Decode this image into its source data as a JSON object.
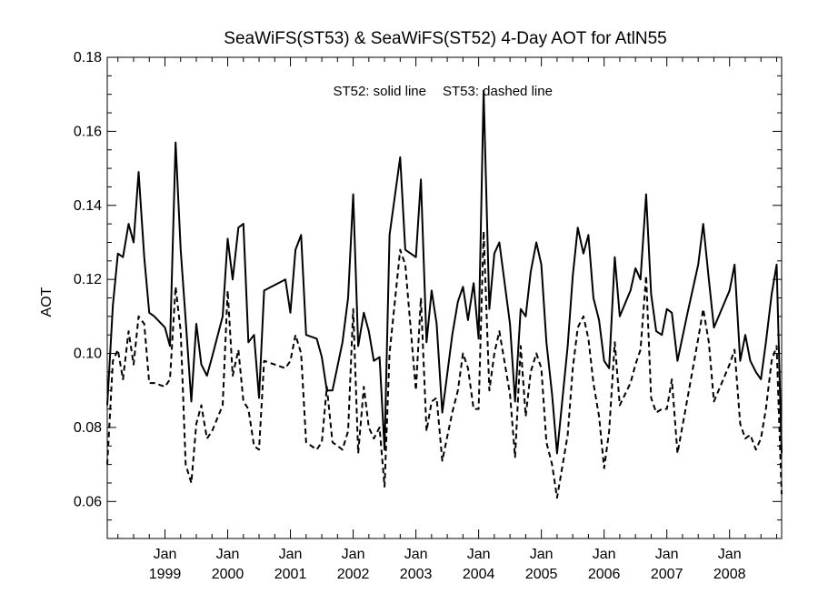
{
  "chart_data": {
    "type": "line",
    "title": "SeaWiFS(ST53) & SeaWiFS(ST52) 4-Day AOT for AtlN55",
    "annotation": {
      "series1": "ST52: solid line",
      "series2": "ST53: dashed line"
    },
    "xlabel": "",
    "ylabel": "AOT",
    "ylim": [
      0.05,
      0.18
    ],
    "yticks": [
      0.06,
      0.08,
      0.1,
      0.12,
      0.14,
      0.16,
      0.18
    ],
    "ytick_labels": [
      "0.06",
      "0.08",
      "0.10",
      "0.12",
      "0.14",
      "0.16",
      "0.18"
    ],
    "xlim": [
      1998.08,
      2008.83
    ],
    "xticks": [
      {
        "x": 1999.0,
        "month": "Jan",
        "year": "1999"
      },
      {
        "x": 2000.0,
        "month": "Jan",
        "year": "2000"
      },
      {
        "x": 2001.0,
        "month": "Jan",
        "year": "2001"
      },
      {
        "x": 2002.0,
        "month": "Jan",
        "year": "2002"
      },
      {
        "x": 2003.0,
        "month": "Jan",
        "year": "2003"
      },
      {
        "x": 2004.0,
        "month": "Jan",
        "year": "2004"
      },
      {
        "x": 2005.0,
        "month": "Jan",
        "year": "2005"
      },
      {
        "x": 2006.0,
        "month": "Jan",
        "year": "2006"
      },
      {
        "x": 2007.0,
        "month": "Jan",
        "year": "2007"
      },
      {
        "x": 2008.0,
        "month": "Jan",
        "year": "2008"
      }
    ],
    "series": [
      {
        "name": "ST52",
        "style": "solid",
        "points": [
          [
            1998.08,
            0.086
          ],
          [
            1998.17,
            0.113
          ],
          [
            1998.25,
            0.127
          ],
          [
            1998.33,
            0.126
          ],
          [
            1998.42,
            0.135
          ],
          [
            1998.5,
            0.13
          ],
          [
            1998.58,
            0.149
          ],
          [
            1998.67,
            0.126
          ],
          [
            1998.75,
            0.111
          ],
          [
            1998.83,
            0.11
          ],
          [
            1999.0,
            0.107
          ],
          [
            1999.08,
            0.102
          ],
          [
            1999.17,
            0.157
          ],
          [
            1999.25,
            0.128
          ],
          [
            1999.33,
            0.109
          ],
          [
            1999.42,
            0.087
          ],
          [
            1999.5,
            0.108
          ],
          [
            1999.58,
            0.097
          ],
          [
            1999.67,
            0.094
          ],
          [
            1999.75,
            0.099
          ],
          [
            1999.92,
            0.11
          ],
          [
            2000.0,
            0.131
          ],
          [
            2000.08,
            0.12
          ],
          [
            2000.17,
            0.134
          ],
          [
            2000.25,
            0.135
          ],
          [
            2000.33,
            0.103
          ],
          [
            2000.42,
            0.105
          ],
          [
            2000.5,
            0.088
          ],
          [
            2000.58,
            0.117
          ],
          [
            2000.92,
            0.12
          ],
          [
            2001.0,
            0.111
          ],
          [
            2001.08,
            0.128
          ],
          [
            2001.17,
            0.132
          ],
          [
            2001.25,
            0.105
          ],
          [
            2001.42,
            0.104
          ],
          [
            2001.5,
            0.099
          ],
          [
            2001.58,
            0.09
          ],
          [
            2001.67,
            0.09
          ],
          [
            2001.83,
            0.103
          ],
          [
            2001.92,
            0.115
          ],
          [
            2002.0,
            0.143
          ],
          [
            2002.08,
            0.102
          ],
          [
            2002.17,
            0.111
          ],
          [
            2002.25,
            0.106
          ],
          [
            2002.33,
            0.098
          ],
          [
            2002.42,
            0.099
          ],
          [
            2002.5,
            0.074
          ],
          [
            2002.58,
            0.132
          ],
          [
            2002.75,
            0.153
          ],
          [
            2002.83,
            0.128
          ],
          [
            2003.0,
            0.126
          ],
          [
            2003.08,
            0.147
          ],
          [
            2003.17,
            0.103
          ],
          [
            2003.25,
            0.117
          ],
          [
            2003.33,
            0.108
          ],
          [
            2003.42,
            0.084
          ],
          [
            2003.58,
            0.105
          ],
          [
            2003.67,
            0.114
          ],
          [
            2003.75,
            0.118
          ],
          [
            2003.83,
            0.109
          ],
          [
            2003.92,
            0.119
          ],
          [
            2004.0,
            0.104
          ],
          [
            2004.08,
            0.171
          ],
          [
            2004.17,
            0.112
          ],
          [
            2004.25,
            0.127
          ],
          [
            2004.33,
            0.13
          ],
          [
            2004.5,
            0.108
          ],
          [
            2004.58,
            0.087
          ],
          [
            2004.67,
            0.112
          ],
          [
            2004.75,
            0.11
          ],
          [
            2004.83,
            0.122
          ],
          [
            2004.92,
            0.13
          ],
          [
            2005.0,
            0.124
          ],
          [
            2005.08,
            0.103
          ],
          [
            2005.17,
            0.089
          ],
          [
            2005.25,
            0.073
          ],
          [
            2005.42,
            0.102
          ],
          [
            2005.5,
            0.121
          ],
          [
            2005.58,
            0.134
          ],
          [
            2005.67,
            0.127
          ],
          [
            2005.75,
            0.132
          ],
          [
            2005.83,
            0.115
          ],
          [
            2005.92,
            0.109
          ],
          [
            2006.0,
            0.098
          ],
          [
            2006.08,
            0.096
          ],
          [
            2006.17,
            0.126
          ],
          [
            2006.25,
            0.11
          ],
          [
            2006.42,
            0.117
          ],
          [
            2006.5,
            0.123
          ],
          [
            2006.58,
            0.12
          ],
          [
            2006.67,
            0.143
          ],
          [
            2006.75,
            0.116
          ],
          [
            2006.83,
            0.106
          ],
          [
            2006.92,
            0.105
          ],
          [
            2007.0,
            0.112
          ],
          [
            2007.08,
            0.111
          ],
          [
            2007.17,
            0.098
          ],
          [
            2007.33,
            0.111
          ],
          [
            2007.5,
            0.124
          ],
          [
            2007.58,
            0.135
          ],
          [
            2007.67,
            0.12
          ],
          [
            2007.75,
            0.107
          ],
          [
            2008.0,
            0.117
          ],
          [
            2008.08,
            0.124
          ],
          [
            2008.17,
            0.098
          ],
          [
            2008.25,
            0.105
          ],
          [
            2008.33,
            0.098
          ],
          [
            2008.42,
            0.095
          ],
          [
            2008.5,
            0.093
          ],
          [
            2008.58,
            0.103
          ],
          [
            2008.67,
            0.116
          ],
          [
            2008.75,
            0.124
          ],
          [
            2008.83,
            0.073
          ]
        ]
      },
      {
        "name": "ST53",
        "style": "dashed",
        "points": [
          [
            1998.08,
            0.07
          ],
          [
            1998.17,
            0.098
          ],
          [
            1998.25,
            0.101
          ],
          [
            1998.33,
            0.093
          ],
          [
            1998.42,
            0.106
          ],
          [
            1998.5,
            0.097
          ],
          [
            1998.58,
            0.11
          ],
          [
            1998.67,
            0.108
          ],
          [
            1998.75,
            0.092
          ],
          [
            1998.83,
            0.092
          ],
          [
            1999.0,
            0.091
          ],
          [
            1999.08,
            0.093
          ],
          [
            1999.17,
            0.118
          ],
          [
            1999.25,
            0.106
          ],
          [
            1999.33,
            0.07
          ],
          [
            1999.42,
            0.065
          ],
          [
            1999.5,
            0.081
          ],
          [
            1999.58,
            0.086
          ],
          [
            1999.67,
            0.077
          ],
          [
            1999.75,
            0.079
          ],
          [
            1999.92,
            0.086
          ],
          [
            2000.0,
            0.117
          ],
          [
            2000.08,
            0.094
          ],
          [
            2000.17,
            0.101
          ],
          [
            2000.25,
            0.087
          ],
          [
            2000.33,
            0.085
          ],
          [
            2000.42,
            0.075
          ],
          [
            2000.5,
            0.074
          ],
          [
            2000.58,
            0.098
          ],
          [
            2000.92,
            0.096
          ],
          [
            2001.0,
            0.098
          ],
          [
            2001.08,
            0.105
          ],
          [
            2001.17,
            0.1
          ],
          [
            2001.25,
            0.076
          ],
          [
            2001.42,
            0.074
          ],
          [
            2001.5,
            0.076
          ],
          [
            2001.58,
            0.091
          ],
          [
            2001.67,
            0.076
          ],
          [
            2001.83,
            0.074
          ],
          [
            2001.92,
            0.079
          ],
          [
            2002.0,
            0.112
          ],
          [
            2002.08,
            0.073
          ],
          [
            2002.17,
            0.091
          ],
          [
            2002.25,
            0.08
          ],
          [
            2002.33,
            0.077
          ],
          [
            2002.42,
            0.08
          ],
          [
            2002.5,
            0.064
          ],
          [
            2002.58,
            0.1
          ],
          [
            2002.75,
            0.128
          ],
          [
            2002.83,
            0.124
          ],
          [
            2003.0,
            0.09
          ],
          [
            2003.08,
            0.115
          ],
          [
            2003.17,
            0.079
          ],
          [
            2003.25,
            0.087
          ],
          [
            2003.33,
            0.088
          ],
          [
            2003.42,
            0.071
          ],
          [
            2003.58,
            0.084
          ],
          [
            2003.67,
            0.09
          ],
          [
            2003.75,
            0.1
          ],
          [
            2003.83,
            0.096
          ],
          [
            2003.92,
            0.085
          ],
          [
            2004.0,
            0.085
          ],
          [
            2004.08,
            0.133
          ],
          [
            2004.17,
            0.09
          ],
          [
            2004.25,
            0.1
          ],
          [
            2004.33,
            0.106
          ],
          [
            2004.5,
            0.089
          ],
          [
            2004.58,
            0.072
          ],
          [
            2004.67,
            0.102
          ],
          [
            2004.75,
            0.083
          ],
          [
            2004.83,
            0.095
          ],
          [
            2004.92,
            0.1
          ],
          [
            2005.0,
            0.096
          ],
          [
            2005.08,
            0.076
          ],
          [
            2005.17,
            0.07
          ],
          [
            2005.25,
            0.061
          ],
          [
            2005.42,
            0.078
          ],
          [
            2005.5,
            0.096
          ],
          [
            2005.58,
            0.107
          ],
          [
            2005.67,
            0.11
          ],
          [
            2005.75,
            0.104
          ],
          [
            2005.83,
            0.092
          ],
          [
            2005.92,
            0.083
          ],
          [
            2006.0,
            0.069
          ],
          [
            2006.08,
            0.079
          ],
          [
            2006.17,
            0.103
          ],
          [
            2006.25,
            0.086
          ],
          [
            2006.42,
            0.092
          ],
          [
            2006.5,
            0.097
          ],
          [
            2006.58,
            0.101
          ],
          [
            2006.67,
            0.121
          ],
          [
            2006.75,
            0.088
          ],
          [
            2006.83,
            0.084
          ],
          [
            2006.92,
            0.085
          ],
          [
            2007.0,
            0.085
          ],
          [
            2007.08,
            0.093
          ],
          [
            2007.17,
            0.073
          ],
          [
            2007.33,
            0.088
          ],
          [
            2007.5,
            0.104
          ],
          [
            2007.58,
            0.112
          ],
          [
            2007.67,
            0.103
          ],
          [
            2007.75,
            0.087
          ],
          [
            2008.0,
            0.097
          ],
          [
            2008.08,
            0.101
          ],
          [
            2008.17,
            0.081
          ],
          [
            2008.25,
            0.077
          ],
          [
            2008.33,
            0.078
          ],
          [
            2008.42,
            0.074
          ],
          [
            2008.5,
            0.077
          ],
          [
            2008.58,
            0.085
          ],
          [
            2008.67,
            0.098
          ],
          [
            2008.75,
            0.102
          ],
          [
            2008.83,
            0.062
          ]
        ]
      }
    ]
  }
}
